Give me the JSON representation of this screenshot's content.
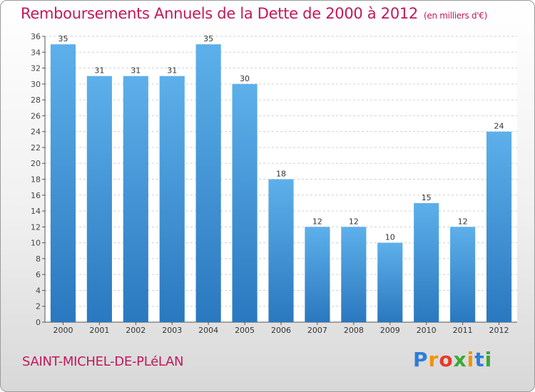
{
  "header": {
    "title": "Remboursements Annuels de la Dette de 2000 à 2012",
    "subtitle": "(en milliers d'€)"
  },
  "footer": {
    "city": "SAINT-MICHEL-DE-PLéLAN",
    "logo": "Proxiti",
    "logo_colors": [
      "#2e7dd7",
      "#f39200",
      "#e63b2e",
      "#3aa935",
      "#f39200",
      "#2e7dd7",
      "#3aa935"
    ]
  },
  "chart_data": {
    "type": "bar",
    "categories": [
      "2000",
      "2001",
      "2002",
      "2003",
      "2004",
      "2005",
      "2006",
      "2007",
      "2008",
      "2009",
      "2010",
      "2011",
      "2012"
    ],
    "values": [
      35,
      31,
      31,
      31,
      35,
      30,
      18,
      12,
      12,
      10,
      15,
      12,
      24
    ],
    "title": "Remboursements Annuels de la Dette de 2000 à 2012",
    "xlabel": "",
    "ylabel": "",
    "ylim": [
      0,
      36
    ],
    "yticks": [
      0,
      2,
      4,
      6,
      8,
      10,
      12,
      14,
      16,
      18,
      20,
      22,
      24,
      26,
      28,
      30,
      32,
      34,
      36
    ],
    "grid": true,
    "bar_color": "#4a9fe0"
  }
}
